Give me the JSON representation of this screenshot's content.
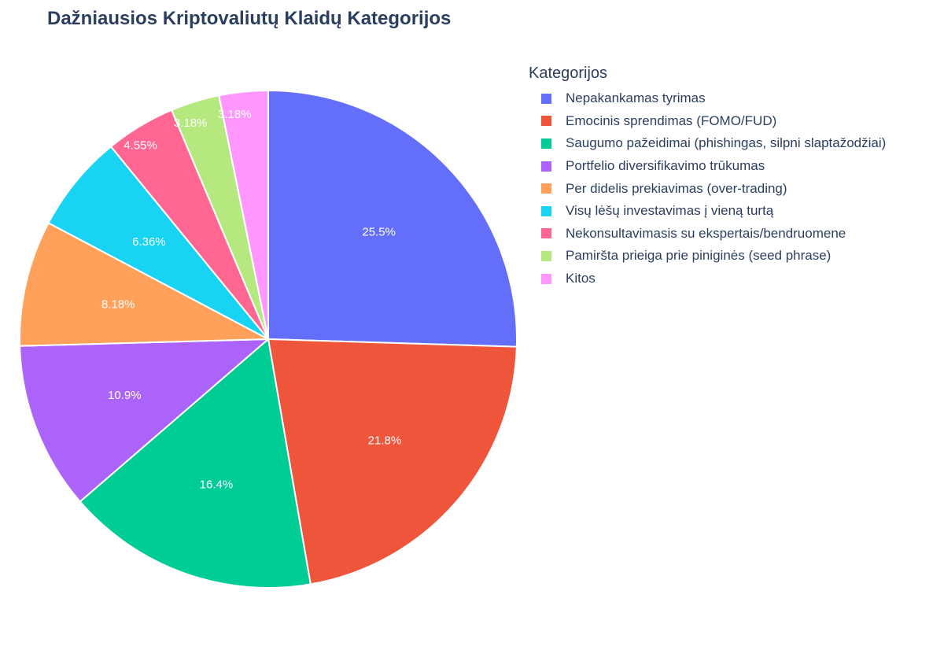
{
  "chart_data": {
    "type": "pie",
    "title": "Dažniausios Kriptovaliutų Klaidų Kategorijos",
    "legend_title": "Kategorijos",
    "legend_position": "right",
    "sort": "descending",
    "direction": "clockwise",
    "start": "top",
    "categories": [
      "Nepakankamas tyrimas",
      "Emocinis sprendimas (FOMO/FUD)",
      "Saugumo pažeidimai (phishingas, silpni slaptažodžiai)",
      "Portfelio diversifikavimo trūkumas",
      "Per didelis prekiavimas (over-trading)",
      "Visų lėšų investavimas į vieną turtą",
      "Nekonsultavimasis su ekspertais/bendruomene",
      "Pamiršta prieiga prie piniginės (seed phrase)",
      "Kitos"
    ],
    "values": [
      25.5,
      21.8,
      16.4,
      10.9,
      8.18,
      6.36,
      4.55,
      3.18,
      3.18
    ],
    "labels": [
      "25.5%",
      "21.8%",
      "16.4%",
      "10.9%",
      "8.18%",
      "6.36%",
      "4.55%",
      "3.18%",
      "3.18%"
    ],
    "colors": [
      "#636efa",
      "#ef553b",
      "#00cc96",
      "#ab63fa",
      "#ffa15a",
      "#19d3f3",
      "#ff6692",
      "#b6e880",
      "#ff97ff"
    ]
  }
}
